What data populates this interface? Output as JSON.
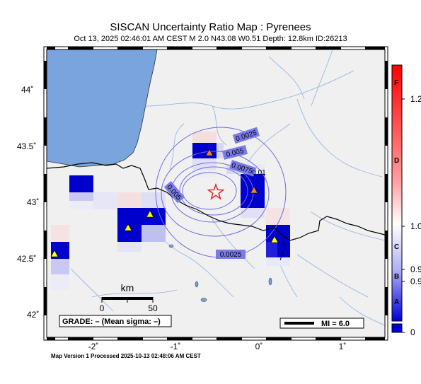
{
  "map": {
    "title": "SISCAN Uncertainty Ratio Map : Pyrenees",
    "subtitle": "Oct 13, 2025 02:46:01 AM CEST   M 2.0   N43.08 W0.51   Depth: 12.8km   ID:26213",
    "footer": "Map Version 1 Processed 2025-10-13 02:48:06 AM CEST",
    "epicenter": {
      "lat": 43.08,
      "lon": -0.51
    }
  },
  "axes": {
    "lat_labels": [
      "44˚",
      "43.5˚",
      "43˚",
      "42.5˚",
      "42˚"
    ],
    "lon_labels": [
      "-2˚",
      "-1˚",
      "0˚",
      "1˚"
    ]
  },
  "contours": [
    "0.0025",
    "0.005",
    "0.0075",
    "0.01",
    "0.005",
    "0.0025"
  ],
  "scale_bar": {
    "title": "km",
    "ticks": [
      "0",
      "50"
    ]
  },
  "grade": "GRADE: – (Mean sigma: –)",
  "legend": {
    "mi": "MI = 6.0"
  },
  "colorbar": {
    "letters": [
      "F",
      "D",
      "C",
      "B",
      "A"
    ],
    "values": [
      "1.2",
      "1.0",
      "0.9",
      "0.9",
      "0"
    ]
  },
  "colors": {
    "land": "#f0f0f0",
    "sea": "#7aa4dd",
    "cell": "#0000cc",
    "station_yellow": "#ffff00",
    "station_orange": "#f08030",
    "epicenter": "#e02020"
  }
}
